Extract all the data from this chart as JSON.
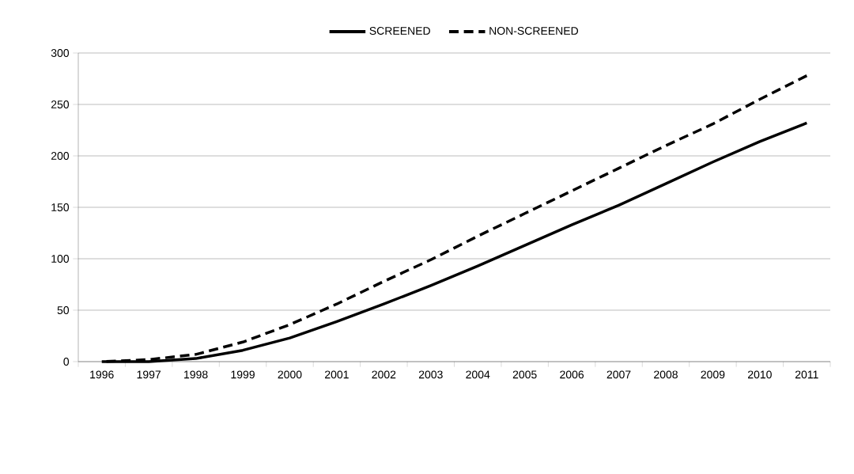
{
  "chart_data": {
    "type": "line",
    "categories": [
      "1996",
      "1997",
      "1998",
      "1999",
      "2000",
      "2001",
      "2002",
      "2003",
      "2004",
      "2005",
      "2006",
      "2007",
      "2008",
      "2009",
      "2010",
      "2011"
    ],
    "series": [
      {
        "name": "SCREENED",
        "color": "#000000",
        "line_style": "solid",
        "values": [
          0,
          0,
          3,
          11,
          23,
          39,
          56,
          74,
          93,
          113,
          133,
          152,
          173,
          194,
          214,
          232
        ]
      },
      {
        "name": "NON-SCREENED",
        "color": "#000000",
        "line_style": "dashed",
        "values": [
          0,
          2,
          7,
          19,
          36,
          56,
          78,
          99,
          122,
          144,
          166,
          188,
          210,
          231,
          255,
          278
        ]
      }
    ],
    "ylim": [
      0,
      300
    ],
    "yticks": [
      0,
      50,
      100,
      150,
      200,
      250,
      300
    ],
    "grid": "y",
    "legend": "top"
  }
}
